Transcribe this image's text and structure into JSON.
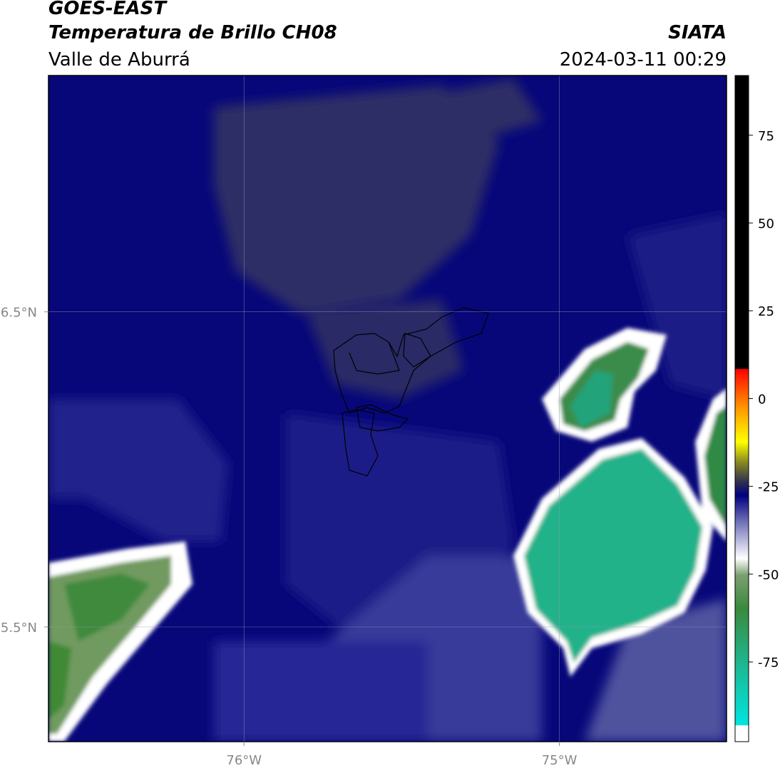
{
  "header": {
    "title": "GOES-EAST",
    "subtitle": "Temperatura de Brillo CH08",
    "region": "Valle de Aburrá",
    "source": "SIATA",
    "datetime": "2024-03-11 00:29"
  },
  "map": {
    "xlim": [
      -76.62,
      -74.47
    ],
    "ylim": [
      5.136,
      7.25
    ],
    "xticks": [
      {
        "value": -76,
        "label": "76°W"
      },
      {
        "value": -75,
        "label": "75°W"
      }
    ],
    "yticks": [
      {
        "value": 6.5,
        "label": "6.5°N"
      },
      {
        "value": 5.5,
        "label": "5.5°N"
      }
    ],
    "grid": true
  },
  "colorbar": {
    "lim": [
      -97.7,
      92
    ],
    "ticks": [
      -75,
      -50,
      -25,
      0,
      25,
      50,
      75
    ]
  }
}
